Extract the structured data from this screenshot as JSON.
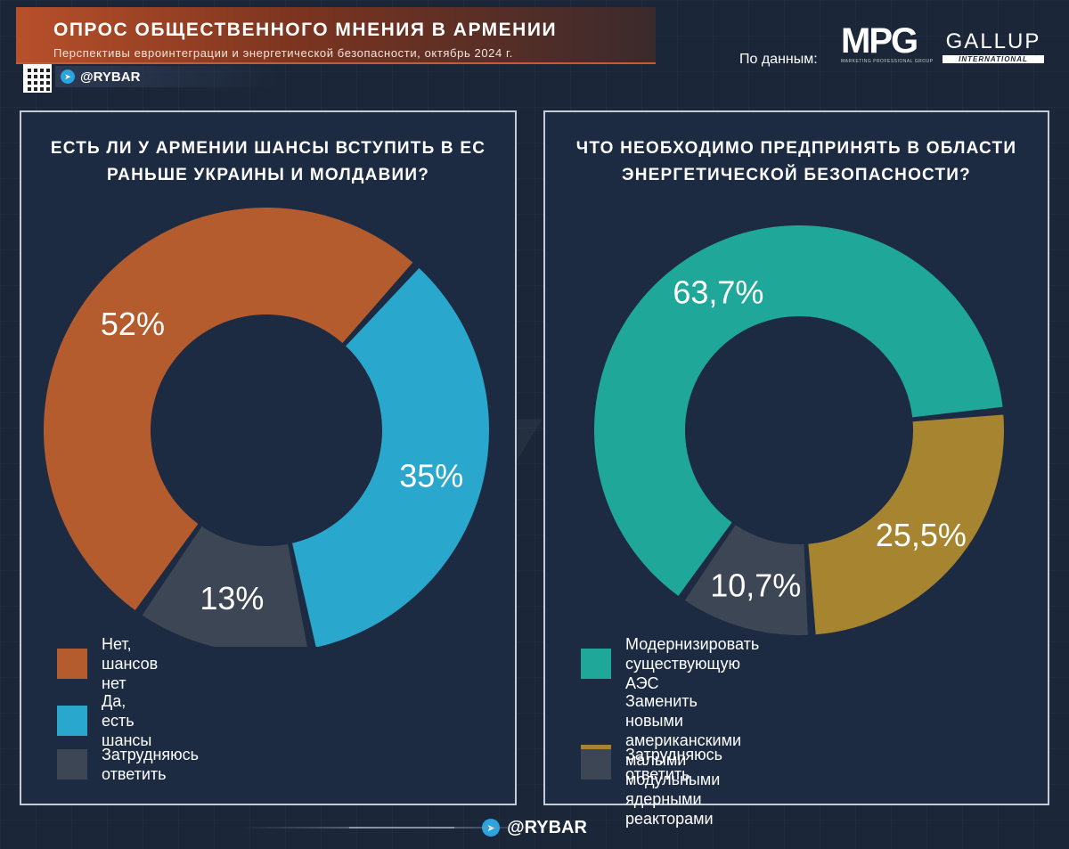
{
  "header": {
    "title": "ОПРОС ОБЩЕСТВЕННОГО МНЕНИЯ В АРМЕНИИ",
    "subtitle": "Перспективы евроинтеграции и энергетической безопасности, октябрь 2024 г.",
    "handle": "@RYBAR",
    "source_label": "По данным:",
    "mpg_logo": "MPG",
    "mpg_tagline": "MARKETING PROFESSIONAL GROUP",
    "gallup_logo": "GALLUP",
    "gallup_tagline": "INTERNATIONAL"
  },
  "watermark": "@RYBAR",
  "footer": {
    "handle": "@RYBAR"
  },
  "colors": {
    "background": "#1b2638",
    "panel": "#1c2b42",
    "orange": "#b55c2e",
    "blue": "#2aa7cc",
    "gray": "#3d4654",
    "teal": "#1fa89a",
    "gold": "#a68430"
  },
  "chart_data": [
    {
      "type": "pie",
      "title": "ЕСТЬ ЛИ У АРМЕНИИ ШАНСЫ ВСТУПИТЬ В ЕС\nРАНЬШЕ УКРАИНЫ И МОЛДАВИИ?",
      "categories": [
        "Нет, шансов нет",
        "Да, есть шансы",
        "Затрудняюсь ответить"
      ],
      "values": [
        52,
        35,
        13
      ],
      "value_labels": [
        "52%",
        "35%",
        "13%"
      ],
      "colors": [
        "#b55c2e",
        "#2aa7cc",
        "#3d4654"
      ],
      "legend": "bottom"
    },
    {
      "type": "pie",
      "title": "ЧТО НЕОБХОДИМО ПРЕДПРИНЯТЬ В ОБЛАСТИ\nЭНЕРГЕТИЧЕСКОЙ БЕЗОПАСНОСТИ?",
      "categories": [
        "Модернизировать существующую АЭС",
        "Заменить новыми американскими малыми\nмодульными ядерными реакторами",
        "Затрудняюсь ответить"
      ],
      "values": [
        63.7,
        25.5,
        10.7
      ],
      "value_labels": [
        "63,7%",
        "25,5%",
        "10,7%"
      ],
      "colors": [
        "#1fa89a",
        "#a68430",
        "#3d4654"
      ],
      "legend": "bottom"
    }
  ]
}
